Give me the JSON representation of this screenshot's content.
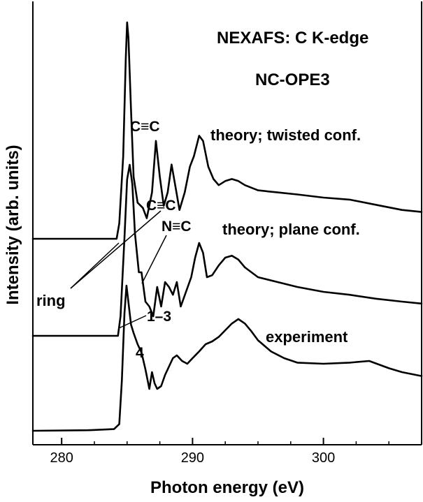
{
  "chart_data": {
    "type": "line",
    "title": "NEXAFS: C K-edge",
    "subtitle": "NC-OPE3",
    "xlabel": "Photon energy (eV)",
    "ylabel": "Intensity (arb. units)",
    "xlim": [
      277.8,
      307.5
    ],
    "xticks": [
      280,
      290,
      300
    ],
    "xtick_labels": [
      "280",
      "290",
      "300"
    ],
    "minor_ticks": [
      282.5,
      285,
      287.5,
      292.5,
      295,
      297.5,
      302.5,
      305
    ],
    "y_units": "arbitrary (curves offset vertically)",
    "grid": false,
    "series": [
      {
        "name": "theory; twisted conf.",
        "x": [
          277.8,
          284.2,
          284.4,
          284.7,
          284.9,
          285.0,
          285.1,
          285.3,
          285.5,
          285.8,
          286.2,
          286.5,
          286.9,
          287.2,
          287.5,
          287.8,
          288.1,
          288.4,
          288.7,
          289.0,
          289.4,
          289.8,
          290.1,
          290.5,
          290.8,
          291.2,
          291.6,
          292.0,
          292.5,
          293.0,
          293.5,
          294.0,
          295.0,
          296.5,
          298.0,
          300.0,
          302.0,
          304.0,
          306.0,
          307.5
        ],
        "y": [
          0.0,
          0.0,
          0.15,
          0.8,
          1.75,
          2.1,
          1.95,
          1.25,
          0.6,
          0.35,
          0.3,
          0.2,
          0.45,
          0.95,
          0.6,
          0.32,
          0.45,
          0.72,
          0.5,
          0.28,
          0.45,
          0.7,
          0.8,
          1.0,
          0.95,
          0.7,
          0.58,
          0.52,
          0.56,
          0.58,
          0.56,
          0.52,
          0.47,
          0.45,
          0.43,
          0.4,
          0.38,
          0.33,
          0.28,
          0.26
        ]
      },
      {
        "name": "theory; plane conf.",
        "x": [
          277.8,
          284.3,
          284.5,
          284.8,
          285.0,
          285.2,
          285.4,
          285.6,
          285.9,
          286.1,
          286.4,
          286.7,
          287.0,
          287.3,
          287.6,
          287.9,
          288.2,
          288.5,
          288.8,
          289.1,
          289.5,
          289.9,
          290.2,
          290.5,
          290.8,
          291.1,
          291.5,
          292.0,
          292.5,
          293.0,
          293.5,
          294.0,
          295.0,
          296.5,
          298.0,
          300.0,
          302.0,
          304.0,
          306.0,
          307.5
        ],
        "y": [
          0.0,
          0.0,
          0.2,
          1.0,
          1.6,
          1.75,
          1.55,
          1.05,
          0.65,
          0.65,
          0.35,
          0.3,
          0.2,
          0.5,
          0.3,
          0.55,
          0.5,
          0.42,
          0.55,
          0.3,
          0.45,
          0.6,
          0.8,
          0.95,
          0.85,
          0.6,
          0.62,
          0.72,
          0.8,
          0.82,
          0.78,
          0.7,
          0.6,
          0.55,
          0.5,
          0.45,
          0.42,
          0.38,
          0.35,
          0.33
        ]
      },
      {
        "name": "experiment",
        "x": [
          277.8,
          282.0,
          284.0,
          284.4,
          284.6,
          284.8,
          284.95,
          285.1,
          285.3,
          285.5,
          285.8,
          286.1,
          286.4,
          286.7,
          286.9,
          287.1,
          287.3,
          287.6,
          287.9,
          288.2,
          288.5,
          288.8,
          289.2,
          289.6,
          290.0,
          290.5,
          291.0,
          291.5,
          292.0,
          292.5,
          293.0,
          293.5,
          294.0,
          294.5,
          295.0,
          296.0,
          297.0,
          298.0,
          300.0,
          302.0,
          303.5,
          305.0,
          306.0,
          307.5
        ],
        "y": [
          0.0,
          0.01,
          0.03,
          0.12,
          0.9,
          2.1,
          2.6,
          2.3,
          1.9,
          1.75,
          1.55,
          1.4,
          1.1,
          0.75,
          1.05,
          0.85,
          0.75,
          0.8,
          1.0,
          1.15,
          1.3,
          1.35,
          1.25,
          1.2,
          1.3,
          1.42,
          1.55,
          1.6,
          1.68,
          1.8,
          1.92,
          2.0,
          1.92,
          1.78,
          1.62,
          1.42,
          1.3,
          1.22,
          1.2,
          1.22,
          1.25,
          1.12,
          1.05,
          0.98
        ]
      }
    ],
    "annotations": [
      {
        "text": "C≡C",
        "near_series": "theory; twisted conf."
      },
      {
        "text": "C≡C",
        "near_series": "theory; plane conf."
      },
      {
        "text": "N≡C",
        "near_series": "theory; plane conf."
      },
      {
        "text": "ring",
        "near_series": "theory; plane conf."
      },
      {
        "text": "1–3",
        "near_series": "experiment"
      },
      {
        "text": "4",
        "near_series": "experiment"
      }
    ]
  }
}
